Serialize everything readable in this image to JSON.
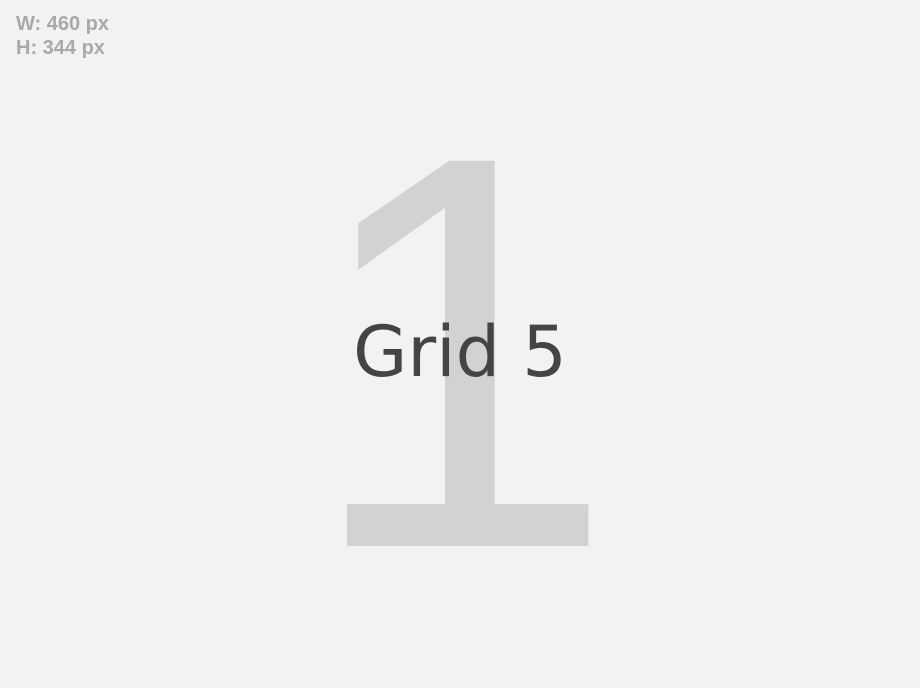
{
  "dimensions": {
    "width_label": "W: 460 px",
    "height_label": "H: 344 px"
  },
  "background_number": "1",
  "title": "Grid 5",
  "colors": {
    "background": "#f2f2f2",
    "dims_text": "#a9a9a9",
    "number": "#d2d2d2",
    "title": "#444444"
  }
}
